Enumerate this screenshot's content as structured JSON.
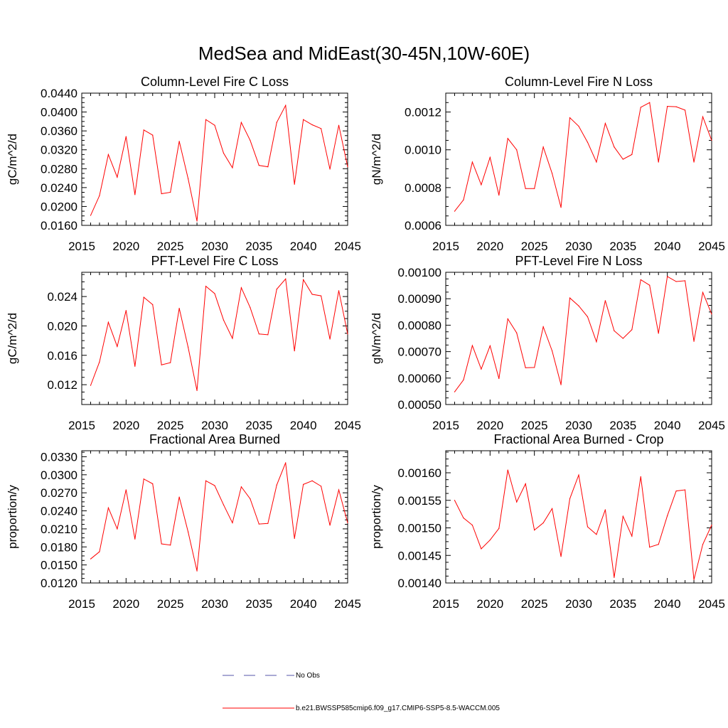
{
  "figure": {
    "title": "MedSea and MidEast(30-45N,10W-60E)"
  },
  "legend": {
    "entries": [
      {
        "label": "No Obs",
        "color": "#5555aa",
        "style": "dashed"
      },
      {
        "label": "b.e21.BWSSP585cmip6.f09_g17.CMIP6-SSP5-8.5-WACCM.005",
        "color": "#ff0000",
        "style": "solid"
      }
    ]
  },
  "chart_data": [
    {
      "type": "line",
      "title": "Column-Level Fire C Loss",
      "ylabel": "gC/m^2/d",
      "xlabel": "",
      "xlim": [
        2015,
        2045
      ],
      "ylim": [
        0.016,
        0.044
      ],
      "xticks": [
        "2015",
        "2020",
        "2025",
        "2030",
        "2035",
        "2040",
        "2045"
      ],
      "yticks": [
        "0.0160",
        "0.0200",
        "0.0240",
        "0.0280",
        "0.0320",
        "0.0360",
        "0.0400",
        "0.0440"
      ],
      "x": [
        2016,
        2017,
        2018,
        2019,
        2020,
        2021,
        2022,
        2023,
        2024,
        2025,
        2026,
        2027,
        2028,
        2029,
        2030,
        2031,
        2032,
        2033,
        2034,
        2035,
        2036,
        2037,
        2038,
        2039,
        2040,
        2041,
        2042,
        2043,
        2044,
        2045
      ],
      "series": [
        {
          "name": "b.e21.BWSSP585cmip6.f09_g17.CMIP6-SSP5-8.5-WACCM.005",
          "color": "#ff0000",
          "values": [
            0.0181,
            0.0223,
            0.031,
            0.0262,
            0.0348,
            0.0225,
            0.0362,
            0.0351,
            0.0227,
            0.023,
            0.0338,
            0.0259,
            0.0169,
            0.0384,
            0.0372,
            0.0313,
            0.0282,
            0.0378,
            0.034,
            0.0287,
            0.0284,
            0.0378,
            0.0414,
            0.0247,
            0.0384,
            0.0373,
            0.0365,
            0.0279,
            0.0372,
            0.0284
          ]
        }
      ]
    },
    {
      "type": "line",
      "title": "Column-Level Fire N Loss",
      "ylabel": "gN/m^2/d",
      "xlabel": "",
      "xlim": [
        2015,
        2045
      ],
      "ylim": [
        0.0006,
        0.0013
      ],
      "xticks": [
        "2015",
        "2020",
        "2025",
        "2030",
        "2035",
        "2040",
        "2045"
      ],
      "yticks": [
        "0.0006",
        "0.0008",
        "0.0010",
        "0.0012"
      ],
      "x": [
        2016,
        2017,
        2018,
        2019,
        2020,
        2021,
        2022,
        2023,
        2024,
        2025,
        2026,
        2027,
        2028,
        2029,
        2030,
        2031,
        2032,
        2033,
        2034,
        2035,
        2036,
        2037,
        2038,
        2039,
        2040,
        2041,
        2042,
        2043,
        2044,
        2045
      ],
      "series": [
        {
          "name": "b.e21.BWSSP585cmip6.f09_g17.CMIP6-SSP5-8.5-WACCM.005",
          "color": "#ff0000",
          "values": [
            0.000675,
            0.000735,
            0.000935,
            0.000815,
            0.00096,
            0.00076,
            0.00106,
            0.001,
            0.000795,
            0.000795,
            0.001015,
            0.000875,
            0.000695,
            0.00117,
            0.001125,
            0.00104,
            0.000935,
            0.00114,
            0.001015,
            0.00095,
            0.000975,
            0.001225,
            0.00125,
            0.000935,
            0.00123,
            0.001228,
            0.00121,
            0.000935,
            0.001175,
            0.00105
          ]
        }
      ]
    },
    {
      "type": "line",
      "title": "PFT-Level Fire C Loss",
      "ylabel": "gC/m^2/d",
      "xlabel": "",
      "xlim": [
        2015,
        2045
      ],
      "ylim": [
        0.0093,
        0.0273
      ],
      "xticks": [
        "2015",
        "2020",
        "2025",
        "2030",
        "2035",
        "2040",
        "2045"
      ],
      "yticks": [
        "0.012",
        "0.016",
        "0.020",
        "0.024"
      ],
      "x": [
        2016,
        2017,
        2018,
        2019,
        2020,
        2021,
        2022,
        2023,
        2024,
        2025,
        2026,
        2027,
        2028,
        2029,
        2030,
        2031,
        2032,
        2033,
        2034,
        2035,
        2036,
        2037,
        2038,
        2039,
        2040,
        2041,
        2042,
        2043,
        2044,
        2045
      ],
      "series": [
        {
          "name": "b.e21.BWSSP585cmip6.f09_g17.CMIP6-SSP5-8.5-WACCM.005",
          "color": "#ff0000",
          "values": [
            0.0119,
            0.0151,
            0.0205,
            0.0172,
            0.0221,
            0.0145,
            0.0239,
            0.0229,
            0.0147,
            0.015,
            0.0224,
            0.0171,
            0.0112,
            0.0254,
            0.0244,
            0.0208,
            0.0183,
            0.0252,
            0.0225,
            0.0189,
            0.0188,
            0.025,
            0.0264,
            0.0166,
            0.0263,
            0.0243,
            0.0241,
            0.0182,
            0.0248,
            0.0189
          ]
        }
      ]
    },
    {
      "type": "line",
      "title": "PFT-Level Fire N Loss",
      "ylabel": "gN/m^2/d",
      "xlabel": "",
      "xlim": [
        2015,
        2045
      ],
      "ylim": [
        0.0005,
        0.001
      ],
      "xticks": [
        "2015",
        "2020",
        "2025",
        "2030",
        "2035",
        "2040",
        "2045"
      ],
      "yticks": [
        "0.00050",
        "0.00060",
        "0.00070",
        "0.00080",
        "0.00090",
        "0.00100"
      ],
      "x": [
        2016,
        2017,
        2018,
        2019,
        2020,
        2021,
        2022,
        2023,
        2024,
        2025,
        2026,
        2027,
        2028,
        2029,
        2030,
        2031,
        2032,
        2033,
        2034,
        2035,
        2036,
        2037,
        2038,
        2039,
        2040,
        2041,
        2042,
        2043,
        2044,
        2045
      ],
      "series": [
        {
          "name": "b.e21.BWSSP585cmip6.f09_g17.CMIP6-SSP5-8.5-WACCM.005",
          "color": "#ff0000",
          "values": [
            0.000548,
            0.000593,
            0.000723,
            0.000634,
            0.000722,
            0.000598,
            0.000824,
            0.000771,
            0.000639,
            0.00064,
            0.000794,
            0.000703,
            0.000575,
            0.000903,
            0.000873,
            0.000832,
            0.000737,
            0.000893,
            0.000779,
            0.00075,
            0.000783,
            0.000972,
            0.000951,
            0.000769,
            0.000984,
            0.000965,
            0.000968,
            0.000739,
            0.000924,
            0.000842
          ]
        }
      ]
    },
    {
      "type": "line",
      "title": "Fractional Area Burned",
      "ylabel": "proportion/y",
      "xlabel": "",
      "xlim": [
        2015,
        2045
      ],
      "ylim": [
        0.012,
        0.034
      ],
      "xticks": [
        "2015",
        "2020",
        "2025",
        "2030",
        "2035",
        "2040",
        "2045"
      ],
      "yticks": [
        "0.0120",
        "0.0150",
        "0.0180",
        "0.0210",
        "0.0240",
        "0.0270",
        "0.0300",
        "0.0330"
      ],
      "x": [
        2016,
        2017,
        2018,
        2019,
        2020,
        2021,
        2022,
        2023,
        2024,
        2025,
        2026,
        2027,
        2028,
        2029,
        2030,
        2031,
        2032,
        2033,
        2034,
        2035,
        2036,
        2037,
        2038,
        2039,
        2040,
        2041,
        2042,
        2043,
        2044,
        2045
      ],
      "series": [
        {
          "name": "b.e21.BWSSP585cmip6.f09_g17.CMIP6-SSP5-8.5-WACCM.005",
          "color": "#ff0000",
          "values": [
            0.016,
            0.0172,
            0.0245,
            0.021,
            0.0275,
            0.0193,
            0.0293,
            0.0285,
            0.0185,
            0.0183,
            0.0263,
            0.0205,
            0.014,
            0.029,
            0.0282,
            0.025,
            0.022,
            0.028,
            0.026,
            0.0218,
            0.0219,
            0.0283,
            0.032,
            0.0194,
            0.0284,
            0.029,
            0.0281,
            0.0216,
            0.0275,
            0.022
          ]
        }
      ]
    },
    {
      "type": "line",
      "title": "Fractional Area Burned - Crop",
      "ylabel": "proportion/y",
      "xlabel": "",
      "xlim": [
        2015,
        2045
      ],
      "ylim": [
        0.0014,
        0.00164
      ],
      "xticks": [
        "2015",
        "2020",
        "2025",
        "2030",
        "2035",
        "2040",
        "2045"
      ],
      "yticks": [
        "0.00140",
        "0.00145",
        "0.00150",
        "0.00155",
        "0.00160"
      ],
      "x": [
        2016,
        2017,
        2018,
        2019,
        2020,
        2021,
        2022,
        2023,
        2024,
        2025,
        2026,
        2027,
        2028,
        2029,
        2030,
        2031,
        2032,
        2033,
        2034,
        2035,
        2036,
        2037,
        2038,
        2039,
        2040,
        2041,
        2042,
        2043,
        2044,
        2045
      ],
      "series": [
        {
          "name": "b.e21.BWSSP585cmip6.f09_g17.CMIP6-SSP5-8.5-WACCM.005",
          "color": "#ff0000",
          "values": [
            0.00155,
            0.001518,
            0.001505,
            0.001462,
            0.001478,
            0.001499,
            0.001605,
            0.001547,
            0.00158,
            0.001496,
            0.001509,
            0.001535,
            0.001448,
            0.001553,
            0.001596,
            0.001502,
            0.001488,
            0.001533,
            0.00141,
            0.001521,
            0.001485,
            0.001593,
            0.001465,
            0.00147,
            0.001522,
            0.001567,
            0.001569,
            0.001406,
            0.00147,
            0.001505
          ]
        }
      ]
    }
  ]
}
